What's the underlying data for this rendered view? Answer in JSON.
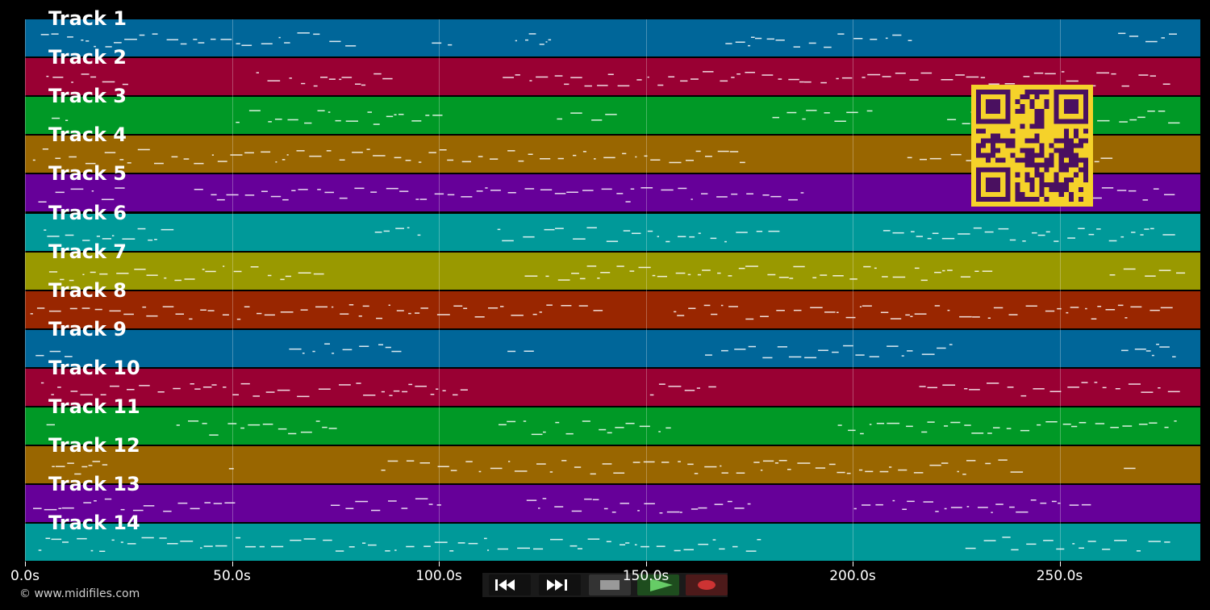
{
  "tracks": [
    {
      "label": "Track 1",
      "color": "#006699"
    },
    {
      "label": "Track 2",
      "color": "#990033"
    },
    {
      "label": "Track 3",
      "color": "#009926"
    },
    {
      "label": "Track 4",
      "color": "#996600"
    },
    {
      "label": "Track 5",
      "color": "#660099"
    },
    {
      "label": "Track 6",
      "color": "#009999"
    },
    {
      "label": "Track 7",
      "color": "#999900"
    },
    {
      "label": "Track 8",
      "color": "#992600"
    },
    {
      "label": "Track 9",
      "color": "#006699"
    },
    {
      "label": "Track 10",
      "color": "#990033"
    },
    {
      "label": "Track 11",
      "color": "#009926"
    },
    {
      "label": "Track 12",
      "color": "#996600"
    },
    {
      "label": "Track 13",
      "color": "#660099"
    },
    {
      "label": "Track 14",
      "color": "#009999"
    }
  ],
  "time_axis": {
    "ticks": [
      "0.0s",
      "50.0s",
      "100.0s",
      "150.0s",
      "200.0s",
      "250.0s"
    ],
    "max_seconds": 284
  },
  "transport": {
    "rewind_icon": "rewind-icon",
    "forward_icon": "fast-forward-icon",
    "stop_icon": "stop-icon",
    "play_icon": "play-icon",
    "record_icon": "record-icon",
    "play_color": "#66cc66",
    "record_color": "#cc3333"
  },
  "qr_colors": {
    "fg": "#4a1060",
    "bg": "#f5d22a"
  },
  "copyright": "© www.midifiles.com"
}
